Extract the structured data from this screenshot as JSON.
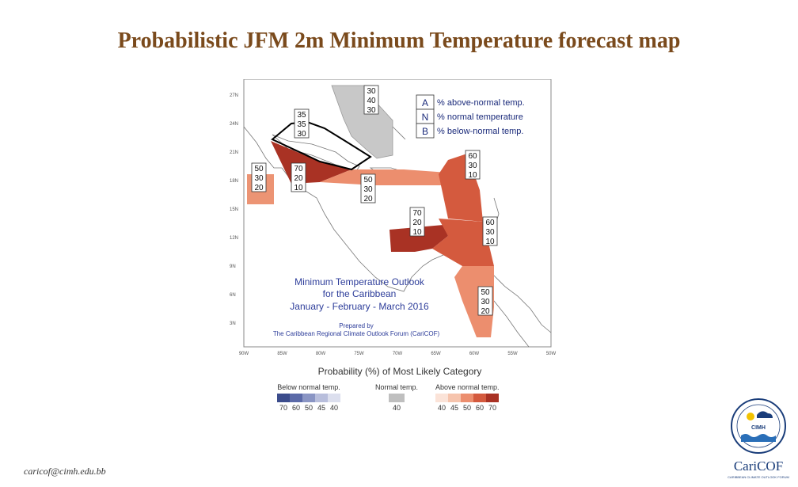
{
  "title": "Probabilistic JFM 2m Minimum Temperature forecast map",
  "email": "caricof@cimh.edu.bb",
  "map": {
    "key": [
      {
        "letter": "A",
        "text": "% above-normal temp."
      },
      {
        "letter": "N",
        "text": "% normal temperature"
      },
      {
        "letter": "B",
        "text": "% below-normal temp."
      }
    ],
    "outlook": {
      "line1": "Minimum Temperature Outlook",
      "line2": "for the Caribbean",
      "line3": "January - February - March 2016",
      "prepared1": "Prepared by",
      "prepared2": "The Caribbean Regional Climate Outlook Forum (CariCOF)"
    },
    "zones": [
      {
        "id": "bahamas",
        "values": [
          "30",
          "40",
          "30"
        ]
      },
      {
        "id": "cuba",
        "values": [
          "35",
          "35",
          "30"
        ]
      },
      {
        "id": "mexico",
        "values": [
          "50",
          "30",
          "20"
        ]
      },
      {
        "id": "caymans",
        "values": [
          "70",
          "20",
          "10"
        ]
      },
      {
        "id": "jamaica",
        "values": [
          "50",
          "30",
          "20"
        ]
      },
      {
        "id": "leeward",
        "values": [
          "60",
          "30",
          "10"
        ]
      },
      {
        "id": "abc",
        "values": [
          "70",
          "20",
          "10"
        ]
      },
      {
        "id": "windward",
        "values": [
          "60",
          "30",
          "10"
        ]
      },
      {
        "id": "guianas",
        "values": [
          "50",
          "30",
          "20"
        ]
      }
    ],
    "lat_labels": [
      "27N",
      "24N",
      "21N",
      "18N",
      "15N",
      "12N",
      "9N",
      "6N",
      "3N"
    ],
    "lon_labels": [
      "90W",
      "85W",
      "80W",
      "75W",
      "70W",
      "65W",
      "60W",
      "55W",
      "50W"
    ]
  },
  "legend": {
    "title": "Probability (%) of Most Likely Category",
    "below": {
      "label": "Below normal temp.",
      "ticks": [
        "70",
        "60",
        "50",
        "45",
        "40"
      ],
      "colors": [
        "#3b4c8c",
        "#5b6aa8",
        "#8a95c4",
        "#b8bedc",
        "#dcdfee"
      ]
    },
    "normal": {
      "label": "Normal temp.",
      "ticks": [
        "40"
      ],
      "colors": [
        "#bfbfbf"
      ]
    },
    "above": {
      "label": "Above normal temp.",
      "ticks": [
        "40",
        "45",
        "50",
        "60",
        "70"
      ],
      "colors": [
        "#fbe3d8",
        "#f6c4ad",
        "#ec8e6e",
        "#d45a3e",
        "#a93224"
      ]
    }
  },
  "logo": {
    "text": "CIMH",
    "brand": "CariCOF",
    "subtitle": "CARIBBEAN CLIMATE OUTLOOK FORUM"
  }
}
